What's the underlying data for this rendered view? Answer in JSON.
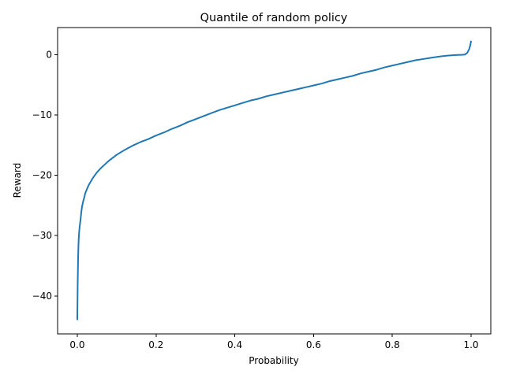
{
  "chart_data": {
    "type": "line",
    "title": "Quantile of random policy",
    "xlabel": "Probability",
    "ylabel": "Reward",
    "xlim": [
      -0.05,
      1.05
    ],
    "ylim": [
      -46.3,
      4.5
    ],
    "grid": false,
    "x_ticks": [
      {
        "value": 0.0,
        "label": "0.0"
      },
      {
        "value": 0.2,
        "label": "0.2"
      },
      {
        "value": 0.4,
        "label": "0.4"
      },
      {
        "value": 0.6,
        "label": "0.6"
      },
      {
        "value": 0.8,
        "label": "0.8"
      },
      {
        "value": 1.0,
        "label": "1.0"
      }
    ],
    "y_ticks": [
      {
        "value": -40,
        "label": "−40"
      },
      {
        "value": -30,
        "label": "−30"
      },
      {
        "value": -20,
        "label": "−20"
      },
      {
        "value": -10,
        "label": "−10"
      },
      {
        "value": 0,
        "label": "0"
      }
    ],
    "series": [
      {
        "color": "#1f77b4",
        "x": [
          0.0,
          0.001,
          0.002,
          0.003,
          0.004,
          0.006,
          0.008,
          0.01,
          0.012,
          0.015,
          0.018,
          0.02,
          0.025,
          0.03,
          0.04,
          0.05,
          0.06,
          0.07,
          0.08,
          0.09,
          0.1,
          0.12,
          0.14,
          0.16,
          0.18,
          0.2,
          0.22,
          0.24,
          0.26,
          0.28,
          0.3,
          0.32,
          0.34,
          0.36,
          0.38,
          0.4,
          0.42,
          0.44,
          0.46,
          0.48,
          0.5,
          0.52,
          0.54,
          0.56,
          0.58,
          0.6,
          0.62,
          0.64,
          0.66,
          0.68,
          0.7,
          0.72,
          0.74,
          0.76,
          0.78,
          0.8,
          0.82,
          0.84,
          0.86,
          0.88,
          0.9,
          0.92,
          0.94,
          0.96,
          0.98,
          0.985,
          0.99,
          0.995,
          0.998,
          1.0
        ],
        "y": [
          -44.0,
          -38.0,
          -34.0,
          -31.5,
          -30.0,
          -28.5,
          -27.5,
          -26.2,
          -25.2,
          -24.3,
          -23.6,
          -23.0,
          -22.2,
          -21.5,
          -20.4,
          -19.5,
          -18.8,
          -18.2,
          -17.6,
          -17.1,
          -16.6,
          -15.8,
          -15.1,
          -14.5,
          -14.0,
          -13.4,
          -12.9,
          -12.3,
          -11.8,
          -11.2,
          -10.7,
          -10.2,
          -9.7,
          -9.2,
          -8.8,
          -8.4,
          -8.0,
          -7.6,
          -7.3,
          -6.9,
          -6.6,
          -6.3,
          -6.0,
          -5.7,
          -5.4,
          -5.1,
          -4.8,
          -4.4,
          -4.1,
          -3.8,
          -3.5,
          -3.1,
          -2.8,
          -2.5,
          -2.1,
          -1.8,
          -1.5,
          -1.2,
          -0.9,
          -0.7,
          -0.5,
          -0.3,
          -0.15,
          -0.05,
          0.0,
          0.05,
          0.3,
          0.9,
          1.6,
          2.3
        ]
      }
    ]
  }
}
